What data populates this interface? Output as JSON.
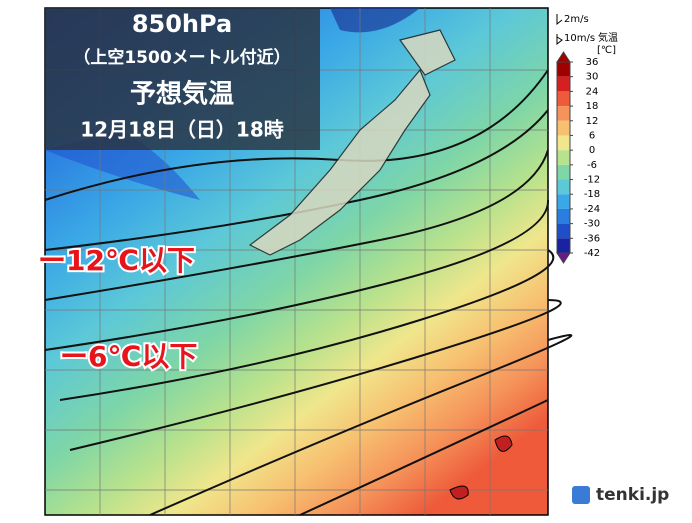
{
  "title_box": {
    "level": "850hPa",
    "height_note": "（上空1500メートル付近）",
    "title": "予想気温",
    "valid_time": "12月18日（日）18時"
  },
  "annotations": [
    "ー12℃以下",
    "ー6℃以下"
  ],
  "legend": {
    "wind_short": "2m/s",
    "wind_long": "10m/s",
    "quantity": "気温",
    "unit": "[℃]",
    "ticks": [
      36,
      30,
      24,
      18,
      12,
      6,
      0,
      -6,
      -12,
      -18,
      -24,
      -30,
      -36,
      -42
    ],
    "colors": [
      "#a00000",
      "#d42020",
      "#ee5a3a",
      "#f5935a",
      "#f7c070",
      "#f0e68c",
      "#b9e28c",
      "#7fd6a6",
      "#5cc8d8",
      "#3aa8e6",
      "#2b7de0",
      "#1f4fc8",
      "#1a22a0"
    ]
  },
  "brand": "tenki.jp"
}
